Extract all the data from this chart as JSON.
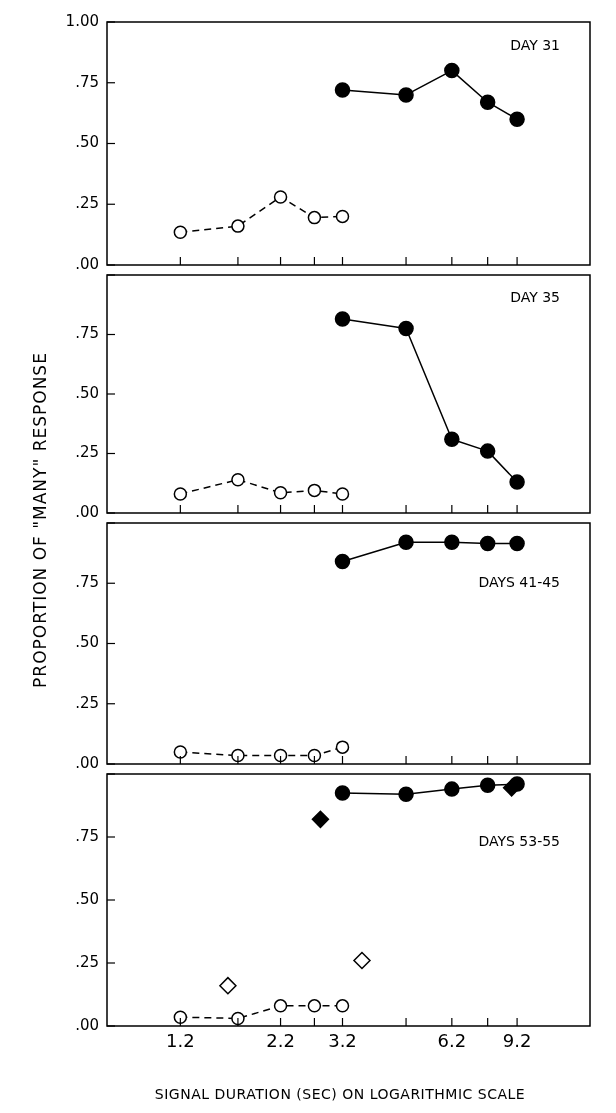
{
  "chart_data": [
    {
      "type": "line",
      "ylabel": "PROPORTION OF \"MANY\" RESPONSE",
      "annotations": [
        "DAY 31"
      ],
      "log": "x",
      "xlim": [
        0.77,
        14.3
      ],
      "ylim": [
        0,
        1
      ],
      "tick_labels": "y",
      "xticks": [
        1.2,
        {
          "value": 1.7,
          "label": null
        },
        2.2,
        {
          "value": 2.7,
          "label": null
        },
        3.2,
        {
          "value": 4.7,
          "label": null
        },
        6.2,
        {
          "value": 7.7,
          "label": null
        },
        9.2
      ],
      "yticks": [
        {
          "value": 0,
          "label": ".00"
        },
        {
          "value": 0.25,
          "label": ".25"
        },
        {
          "value": 0.5,
          "label": ".50"
        },
        {
          "value": 0.75,
          "label": ".75"
        },
        {
          "value": 1,
          "label": "1.00"
        }
      ],
      "series": [
        {
          "color": "#000000",
          "marker": "circle",
          "line_style": "dashed",
          "x": [
            1.2,
            1.7,
            2.2,
            2.7,
            3.2
          ],
          "values": [
            0.135,
            0.16,
            0.28,
            0.195,
            0.2
          ]
        },
        {
          "color": "#000000",
          "marker": "circle",
          "line_style": "solid",
          "x": [
            3.2,
            4.7,
            6.2,
            7.7,
            9.2
          ],
          "values": [
            0.72,
            0.7,
            0.8,
            0.67,
            0.6
          ]
        }
      ]
    },
    {
      "type": "line",
      "annotations": [
        "DAY 35"
      ],
      "log": "x",
      "xlim": [
        0.77,
        14.3
      ],
      "ylim": [
        0,
        1
      ],
      "tick_labels": "y",
      "xticks": [
        1.2,
        {
          "value": 1.7,
          "label": null
        },
        2.2,
        {
          "value": 2.7,
          "label": null
        },
        3.2,
        {
          "value": 4.7,
          "label": null
        },
        6.2,
        {
          "value": 7.7,
          "label": null
        },
        9.2
      ],
      "yticks": [
        {
          "value": 0,
          "label": ".00"
        },
        {
          "value": 0.25,
          "label": ".25"
        },
        {
          "value": 0.5,
          "label": ".50"
        },
        {
          "value": 0.75,
          "label": ".75"
        },
        {
          "value": 1,
          "label": null
        }
      ],
      "series": [
        {
          "color": "#000000",
          "marker": "circle",
          "line_style": "dashed",
          "x": [
            1.2,
            1.7,
            2.2,
            2.7,
            3.2
          ],
          "values": [
            0.08,
            0.14,
            0.085,
            0.095,
            0.08
          ]
        },
        {
          "color": "#000000",
          "marker": "circle",
          "line_style": "solid",
          "x": [
            3.2,
            4.7,
            6.2,
            7.7,
            9.2
          ],
          "values": [
            0.815,
            0.775,
            0.31,
            0.26,
            0.13
          ]
        }
      ]
    },
    {
      "type": "line",
      "annotations": [
        "DAYS 41-45"
      ],
      "log": "x",
      "xlim": [
        0.77,
        14.3
      ],
      "ylim": [
        0,
        1
      ],
      "tick_labels": "y",
      "xticks": [
        1.2,
        {
          "value": 1.7,
          "label": null
        },
        2.2,
        {
          "value": 2.7,
          "label": null
        },
        3.2,
        {
          "value": 4.7,
          "label": null
        },
        6.2,
        {
          "value": 7.7,
          "label": null
        },
        9.2
      ],
      "yticks": [
        {
          "value": 0,
          "label": ".00"
        },
        {
          "value": 0.25,
          "label": ".25"
        },
        {
          "value": 0.5,
          "label": ".50"
        },
        {
          "value": 0.75,
          "label": ".75"
        },
        {
          "value": 1,
          "label": null
        }
      ],
      "series": [
        {
          "color": "#000000",
          "marker": "circle",
          "line_style": "dashed",
          "x": [
            1.2,
            1.7,
            2.2,
            2.7,
            3.2
          ],
          "values": [
            0.05,
            0.035,
            0.035,
            0.035,
            0.07
          ]
        },
        {
          "color": "#000000",
          "marker": "circle",
          "line_style": "solid",
          "x": [
            3.2,
            4.7,
            6.2,
            7.7,
            9.2
          ],
          "values": [
            0.84,
            0.92,
            0.92,
            0.915,
            0.915
          ]
        }
      ]
    },
    {
      "type": "line",
      "xlabel": "SIGNAL DURATION (SEC) ON LOGARITHMIC SCALE",
      "annotations": [
        "DAYS 53-55"
      ],
      "log": "x",
      "xlim": [
        0.77,
        14.3
      ],
      "ylim": [
        0,
        1
      ],
      "xticks": [
        1.2,
        {
          "value": 1.7,
          "label": null
        },
        2.2,
        {
          "value": 2.7,
          "label": null
        },
        3.2,
        {
          "value": 4.7,
          "label": null
        },
        6.2,
        {
          "value": 7.7,
          "label": null
        },
        9.2
      ],
      "yticks": [
        {
          "value": 0,
          "label": ".00"
        },
        {
          "value": 0.25,
          "label": ".25"
        },
        {
          "value": 0.5,
          "label": ".50"
        },
        {
          "value": 0.75,
          "label": ".75"
        },
        {
          "value": 1,
          "label": null
        }
      ],
      "series": [
        {
          "color": "#000000",
          "marker": "circle",
          "line_style": "dashed",
          "x": [
            1.2,
            1.7,
            2.2,
            2.7,
            3.2
          ],
          "values": [
            0.035,
            0.03,
            0.08,
            0.08,
            0.08
          ]
        },
        {
          "color": "#000000",
          "marker": "circle",
          "line_style": "solid",
          "x": [
            3.2,
            4.7,
            6.2,
            7.7,
            9.2
          ],
          "values": [
            0.925,
            0.92,
            0.94,
            0.955,
            0.96
          ]
        },
        {
          "type": "scatter",
          "color": "#000000",
          "marker": "diamond",
          "x": [
            2.8,
            8.9
          ],
          "values": [
            0.82,
            0.945
          ]
        },
        {
          "type": "scatter",
          "color": "#000000",
          "marker": "diamond",
          "x": [
            1.6,
            3.6
          ],
          "values": [
            0.16,
            0.26
          ]
        }
      ]
    }
  ]
}
